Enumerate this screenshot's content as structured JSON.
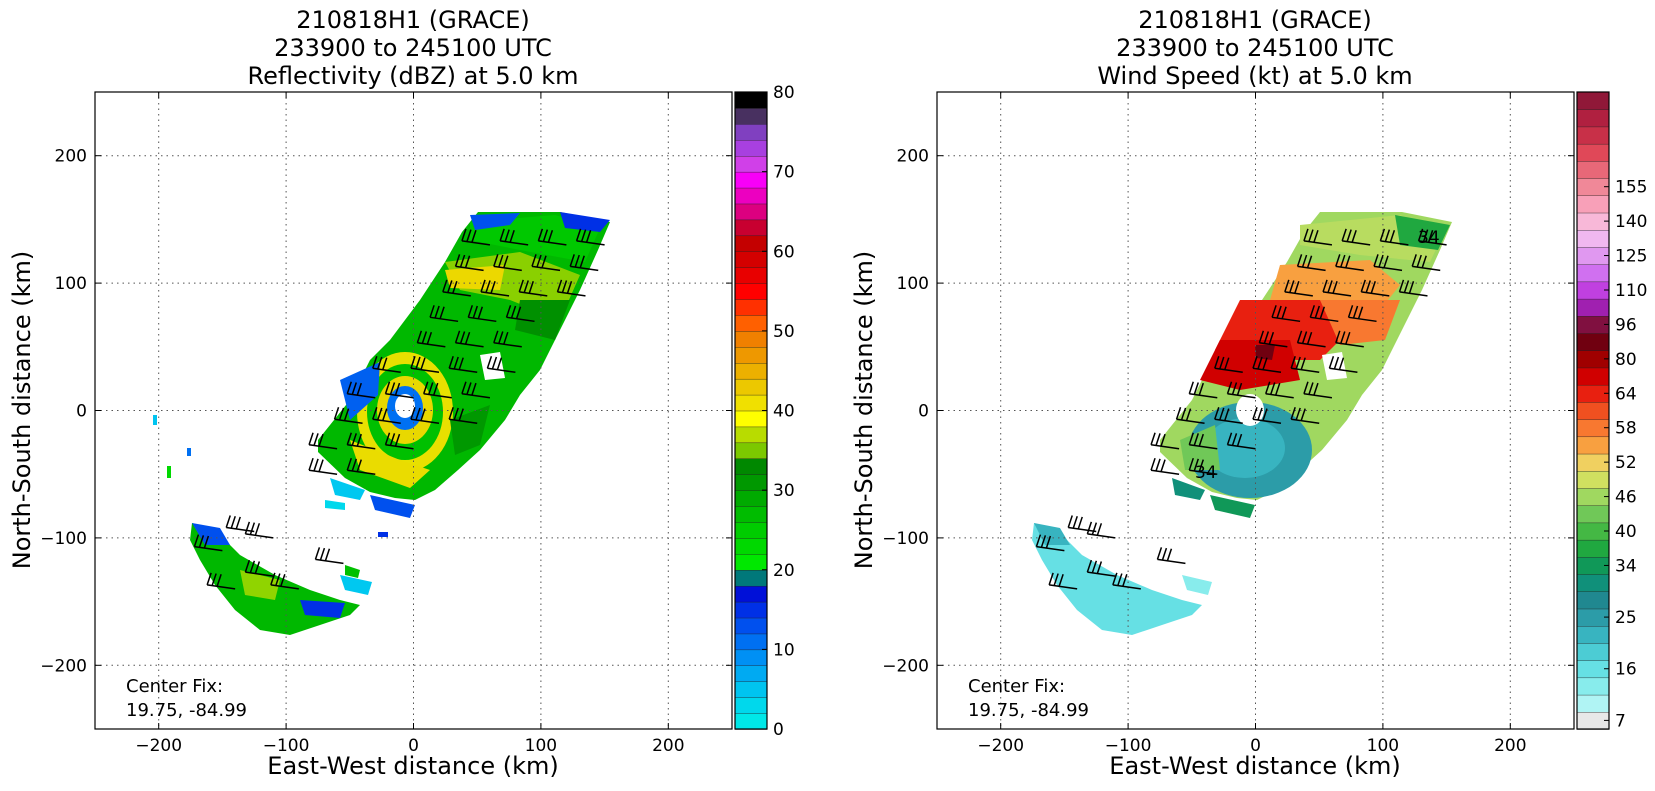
{
  "chart_data": [
    {
      "type": "heatmap",
      "title_lines": [
        "210818H1 (GRACE)",
        "233900 to 245100 UTC",
        "Reflectivity (dBZ) at 5.0 km"
      ],
      "xlabel": "East-West distance (km)",
      "ylabel": "North-South distance (km)",
      "xlim": [
        -250,
        250
      ],
      "ylim": [
        -250,
        250
      ],
      "xticks": [
        -200,
        -100,
        0,
        100,
        200
      ],
      "yticks": [
        -200,
        -100,
        0,
        100,
        200
      ],
      "grid": true,
      "annotation_lines": [
        "Center Fix:",
        "19.75, -84.99"
      ],
      "colorbar": {
        "min": 0,
        "max": 80,
        "tick_values": [
          0,
          10,
          20,
          30,
          40,
          50,
          60,
          70,
          80
        ],
        "tick_labels": [
          "0",
          "10",
          "20",
          "30",
          "40",
          "50",
          "60",
          "70",
          "80"
        ],
        "colors": [
          "#00e8e8",
          "#00d8ec",
          "#00c4f0",
          "#00aaf2",
          "#0090f4",
          "#0070f2",
          "#0050ee",
          "#0030e6",
          "#0010d8",
          "#00787a",
          "#00e800",
          "#00d800",
          "#00cc00",
          "#00bc00",
          "#00aa00",
          "#009800",
          "#008800",
          "#7cc800",
          "#b8dc00",
          "#ffff00",
          "#f0e000",
          "#ecc800",
          "#ecb000",
          "#ee9800",
          "#f08000",
          "#ff6000",
          "#ff3000",
          "#ff0000",
          "#e80000",
          "#d40000",
          "#c40000",
          "#c80030",
          "#dc0080",
          "#ec00c0",
          "#f800f8",
          "#d040e8",
          "#a840e0",
          "#8040c0",
          "#483060",
          "#000000"
        ]
      }
    },
    {
      "type": "heatmap",
      "title_lines": [
        "210818H1 (GRACE)",
        "233900 to 245100 UTC",
        "Wind Speed (kt) at 5.0 km"
      ],
      "xlabel": "East-West distance (km)",
      "ylabel": "North-South distance (km)",
      "xlim": [
        -250,
        250
      ],
      "ylim": [
        -250,
        250
      ],
      "xticks": [
        -200,
        -100,
        0,
        100,
        200
      ],
      "yticks": [
        -200,
        -100,
        0,
        100,
        200
      ],
      "grid": true,
      "annotation_lines": [
        "Center Fix:",
        "19.75, -84.99"
      ],
      "contour_labels": [
        "34",
        "34"
      ],
      "colorbar": {
        "tick_labels": [
          "7",
          "16",
          "25",
          "34",
          "40",
          "46",
          "52",
          "58",
          "64",
          "80",
          "96",
          "110",
          "125",
          "140",
          "155"
        ],
        "tick_bin_index": [
          0,
          3,
          6,
          9,
          11,
          13,
          15,
          17,
          19,
          21,
          23,
          25,
          27,
          29,
          31
        ],
        "colors": [
          "#e8e8e8",
          "#b0f4f4",
          "#88ecec",
          "#66e0e4",
          "#4cccd4",
          "#38b4c0",
          "#2c9ca8",
          "#208890",
          "#10907a",
          "#109858",
          "#20a840",
          "#44b844",
          "#70c858",
          "#a0d860",
          "#d0e060",
          "#f0d060",
          "#f8a040",
          "#f87830",
          "#f05020",
          "#e82010",
          "#d00000",
          "#a00000",
          "#700010",
          "#801040",
          "#a020b0",
          "#c040e0",
          "#d070f0",
          "#e098f0",
          "#f0b8f0",
          "#f8b8d8",
          "#f8a0b8",
          "#f08898",
          "#e86878",
          "#e04858",
          "#c83048",
          "#b02040",
          "#901838"
        ]
      }
    }
  ]
}
